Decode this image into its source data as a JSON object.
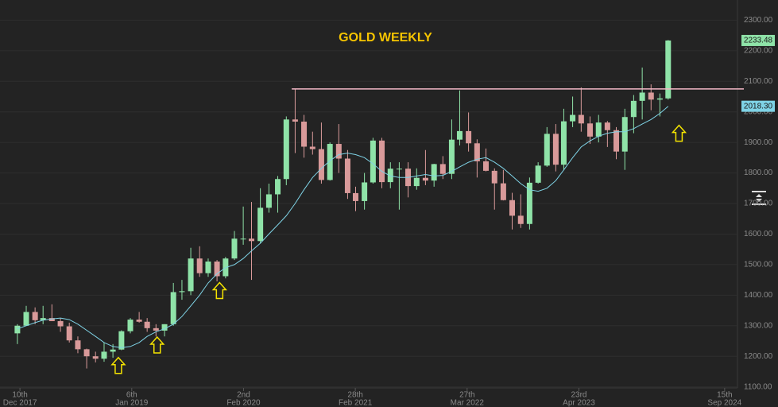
{
  "chart_data": {
    "type": "candlestick",
    "title": "GOLD WEEKLY",
    "xlim": [
      "2017-10-01",
      "2024-10-30"
    ],
    "xticks": [
      {
        "value": "2017-12-10",
        "label": "10th",
        "sublabel": "Dec 2017"
      },
      {
        "value": "2019-01-06",
        "label": "6th",
        "sublabel": "Jan 2019"
      },
      {
        "value": "2020-02-02",
        "label": "2nd",
        "sublabel": "Feb 2020"
      },
      {
        "value": "2021-02-28",
        "label": "28th",
        "sublabel": "Feb 2021"
      },
      {
        "value": "2022-03-27",
        "label": "27th",
        "sublabel": "Mar 2022"
      },
      {
        "value": "2023-04-23",
        "label": "23rd",
        "sublabel": "Apr 2023"
      },
      {
        "value": "2024-09-15",
        "label": "15th",
        "sublabel": "Sep 2024"
      }
    ],
    "ylim": [
      1060,
      2340
    ],
    "yticks": [
      {
        "value": 1100,
        "label": "1100.00"
      },
      {
        "value": 1200,
        "label": "1200.00"
      },
      {
        "value": 1300,
        "label": "1300.00"
      },
      {
        "value": 1400,
        "label": "1400.00"
      },
      {
        "value": 1500,
        "label": "1500.00"
      },
      {
        "value": 1600,
        "label": "1600.00"
      },
      {
        "value": 1700,
        "label": "1700.00"
      },
      {
        "value": 1800,
        "label": "1800.00"
      },
      {
        "value": 1900,
        "label": "1900.00"
      },
      {
        "value": 2000,
        "label": "2000.00"
      },
      {
        "value": 2100,
        "label": "2100.00"
      },
      {
        "value": 2200,
        "label": "2200.00"
      },
      {
        "value": 2300,
        "label": "2300.00"
      }
    ],
    "grid": true,
    "candles": {
      "up_color": "#8fe3a8",
      "down_color": "#d99a9a",
      "x": [
        "2017-12",
        "2018-01",
        "2018-02",
        "2018-03",
        "2018-04",
        "2018-05",
        "2018-06",
        "2018-07",
        "2018-08",
        "2018-09",
        "2018-10",
        "2018-11",
        "2018-12",
        "2019-01",
        "2019-02",
        "2019-03",
        "2019-04",
        "2019-05",
        "2019-06",
        "2019-07",
        "2019-08",
        "2019-09",
        "2019-10",
        "2019-11",
        "2019-12",
        "2020-01",
        "2020-02",
        "2020-03",
        "2020-04",
        "2020-05",
        "2020-06",
        "2020-07",
        "2020-08",
        "2020-09",
        "2020-10",
        "2020-11",
        "2020-12",
        "2021-01",
        "2021-02",
        "2021-03",
        "2021-04",
        "2021-05",
        "2021-06",
        "2021-07",
        "2021-08",
        "2021-09",
        "2021-10",
        "2021-11",
        "2021-12",
        "2022-01",
        "2022-02",
        "2022-03",
        "2022-04",
        "2022-05",
        "2022-06",
        "2022-07",
        "2022-08",
        "2022-09",
        "2022-10",
        "2022-11",
        "2022-12",
        "2023-01",
        "2023-02",
        "2023-03",
        "2023-04",
        "2023-05",
        "2023-06",
        "2023-07",
        "2023-08",
        "2023-09",
        "2023-10",
        "2023-11",
        "2023-12",
        "2024-01",
        "2024-02",
        "2024-03"
      ],
      "open": [
        1275,
        1300,
        1345,
        1318,
        1325,
        1315,
        1298,
        1252,
        1223,
        1200,
        1192,
        1215,
        1222,
        1282,
        1320,
        1313,
        1292,
        1284,
        1305,
        1410,
        1413,
        1520,
        1472,
        1510,
        1462,
        1520,
        1585,
        1585,
        1577,
        1686,
        1730,
        1780,
        1975,
        1968,
        1886,
        1878,
        1777,
        1895,
        1847,
        1734,
        1708,
        1769,
        1906,
        1770,
        1814,
        1814,
        1757,
        1784,
        1775,
        1829,
        1797,
        1909,
        1937,
        1897,
        1838,
        1807,
        1766,
        1711,
        1660,
        1633,
        1768,
        1824,
        1928,
        1827,
        1969,
        1990,
        1962,
        1919,
        1965,
        1940,
        1870,
        1983,
        2036,
        2063,
        2040,
        2044
      ],
      "high": [
        1305,
        1365,
        1360,
        1365,
        1370,
        1325,
        1310,
        1265,
        1225,
        1215,
        1245,
        1240,
        1285,
        1325,
        1345,
        1325,
        1305,
        1305,
        1440,
        1450,
        1555,
        1560,
        1520,
        1515,
        1525,
        1610,
        1690,
        1705,
        1750,
        1765,
        1790,
        1985,
        2075,
        1990,
        1935,
        1965,
        1900,
        1960,
        1875,
        1755,
        1800,
        1915,
        1915,
        1835,
        1835,
        1835,
        1815,
        1875,
        1830,
        1855,
        1975,
        2070,
        1998,
        1910,
        1880,
        1815,
        1810,
        1735,
        1730,
        1785,
        1835,
        1950,
        1960,
        2010,
        2050,
        2080,
        1985,
        1990,
        1970,
        1950,
        2010,
        2055,
        2145,
        2090,
        2060,
        2235
      ],
      "low": [
        1240,
        1300,
        1305,
        1305,
        1315,
        1280,
        1245,
        1210,
        1160,
        1180,
        1182,
        1195,
        1220,
        1275,
        1310,
        1280,
        1265,
        1265,
        1300,
        1385,
        1400,
        1460,
        1460,
        1445,
        1455,
        1515,
        1565,
        1450,
        1570,
        1670,
        1670,
        1760,
        1865,
        1850,
        1860,
        1765,
        1775,
        1800,
        1715,
        1675,
        1680,
        1765,
        1750,
        1750,
        1680,
        1720,
        1745,
        1760,
        1755,
        1780,
        1780,
        1890,
        1870,
        1785,
        1805,
        1680,
        1710,
        1615,
        1620,
        1615,
        1765,
        1820,
        1805,
        1810,
        1950,
        1935,
        1895,
        1900,
        1885,
        1845,
        1810,
        1930,
        1975,
        2005,
        1985,
        2040
      ],
      "close": [
        1300,
        1345,
        1318,
        1325,
        1315,
        1298,
        1252,
        1223,
        1200,
        1192,
        1215,
        1222,
        1282,
        1320,
        1313,
        1292,
        1284,
        1305,
        1410,
        1413,
        1520,
        1472,
        1510,
        1462,
        1520,
        1585,
        1585,
        1577,
        1686,
        1730,
        1780,
        1975,
        1968,
        1886,
        1878,
        1777,
        1895,
        1847,
        1734,
        1708,
        1769,
        1906,
        1770,
        1814,
        1814,
        1757,
        1784,
        1775,
        1829,
        1797,
        1909,
        1937,
        1897,
        1838,
        1807,
        1766,
        1711,
        1660,
        1633,
        1768,
        1824,
        1928,
        1827,
        1969,
        1990,
        1962,
        1919,
        1965,
        1940,
        1870,
        1983,
        2036,
        2063,
        2040,
        2044,
        2233.48
      ]
    },
    "ma": {
      "color": "#7fd3e6",
      "values": [
        1290,
        1300,
        1310,
        1318,
        1322,
        1325,
        1320,
        1305,
        1285,
        1265,
        1245,
        1232,
        1228,
        1232,
        1245,
        1265,
        1280,
        1290,
        1305,
        1330,
        1365,
        1400,
        1440,
        1470,
        1490,
        1500,
        1520,
        1545,
        1570,
        1600,
        1630,
        1660,
        1700,
        1745,
        1785,
        1815,
        1840,
        1860,
        1865,
        1860,
        1850,
        1830,
        1805,
        1790,
        1785,
        1785,
        1790,
        1795,
        1790,
        1792,
        1805,
        1820,
        1835,
        1845,
        1850,
        1835,
        1815,
        1790,
        1765,
        1745,
        1740,
        1750,
        1775,
        1810,
        1850,
        1885,
        1905,
        1920,
        1930,
        1935,
        1935,
        1945,
        1960,
        1975,
        1995,
        2018.3
      ],
      "last_label": "2018.30"
    },
    "hline": {
      "value": 2075,
      "from": "2020-07-20",
      "color": "#f2b8c6"
    },
    "arrows": {
      "color": "#f5e400",
      "points": [
        {
          "x": "2018-11-20",
          "y": 1196
        },
        {
          "x": "2019-04-05",
          "y": 1263
        },
        {
          "x": "2019-11-10",
          "y": 1441
        },
        {
          "x": "2024-04-08",
          "y": 1956
        }
      ]
    }
  }
}
